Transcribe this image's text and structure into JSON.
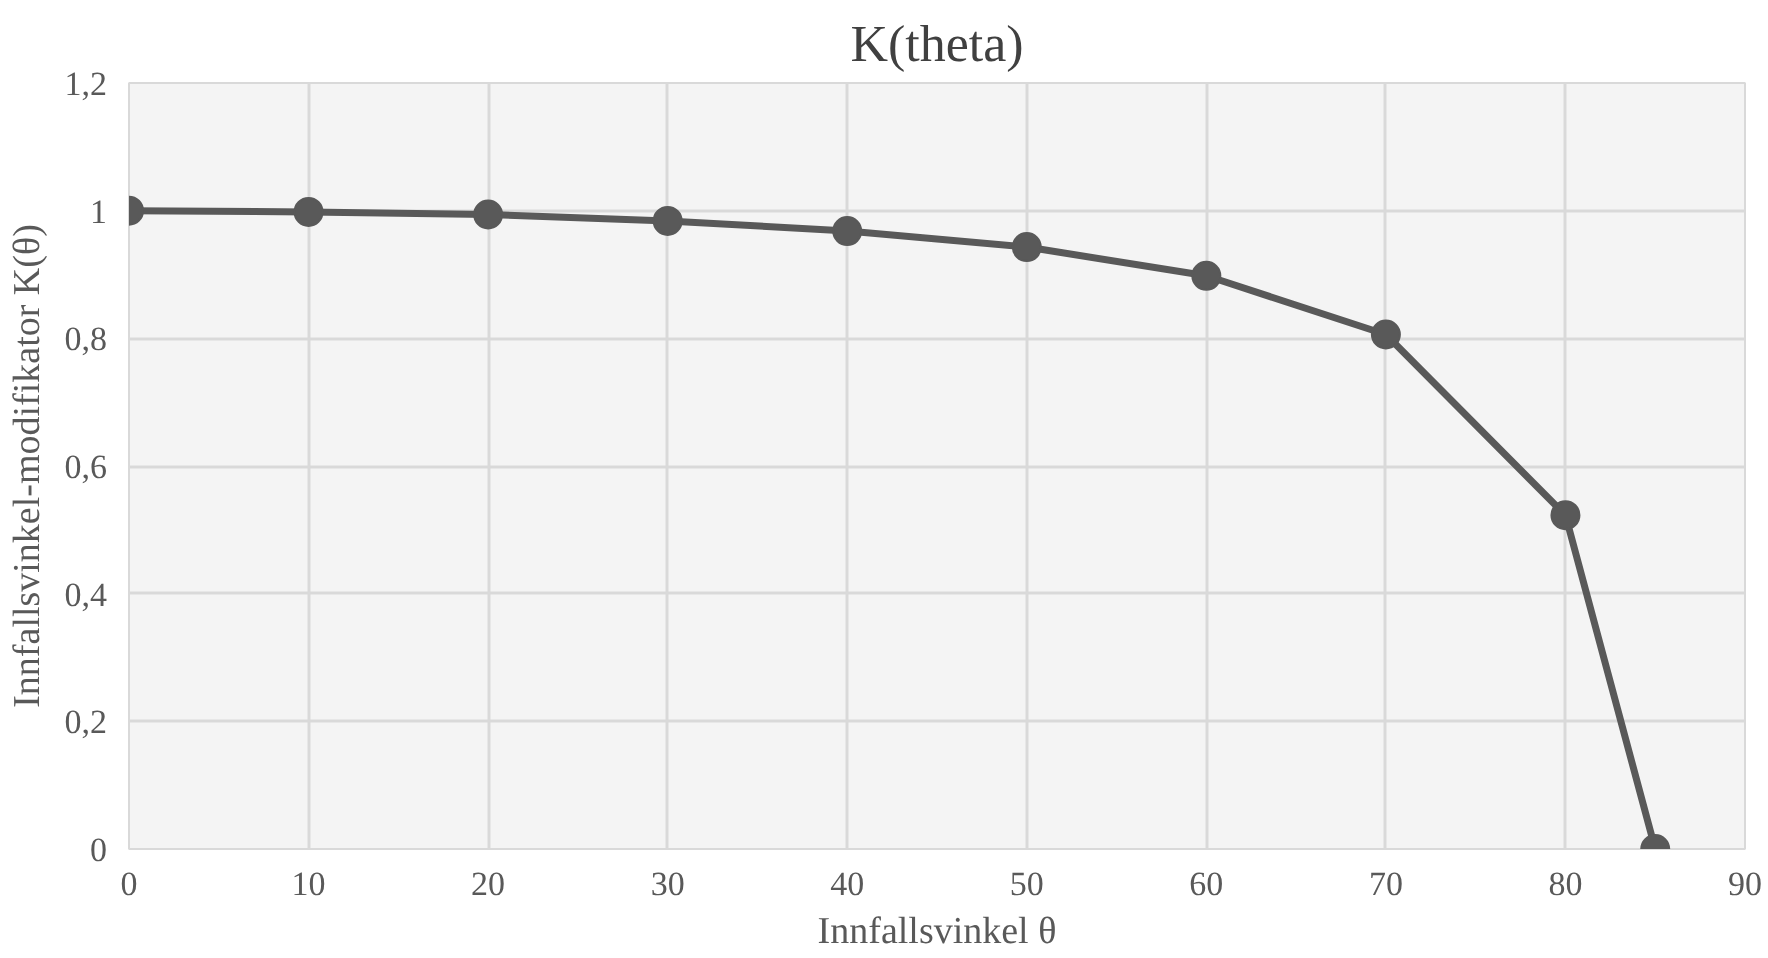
{
  "chart_data": {
    "type": "line",
    "title": "K(theta)",
    "xlabel": "Innfallsvinkel θ",
    "ylabel": "Innfallsvinkel-modifikator K(θ)",
    "x": [
      0,
      10,
      20,
      30,
      40,
      50,
      60,
      70,
      80,
      85
    ],
    "series": [
      {
        "color": "#595959",
        "values": [
          1.0,
          0.998,
          0.994,
          0.984,
          0.968,
          0.943,
          0.898,
          0.806,
          0.523,
          0.0
        ]
      }
    ],
    "xlim": [
      0,
      90
    ],
    "xticks": [
      0,
      10,
      20,
      30,
      40,
      50,
      60,
      70,
      80,
      90
    ],
    "ylim": [
      0,
      1.2
    ],
    "yticks": [
      0,
      {
        "value": 0.2,
        "label": "0,2"
      },
      {
        "value": 0.4,
        "label": "0,4"
      },
      {
        "value": 0.6,
        "label": "0,6"
      },
      {
        "value": 0.8,
        "label": "0,8"
      },
      1,
      {
        "value": 1.2,
        "label": "1,2"
      }
    ],
    "grid": true,
    "marker": "circle",
    "line_style": "solid"
  }
}
